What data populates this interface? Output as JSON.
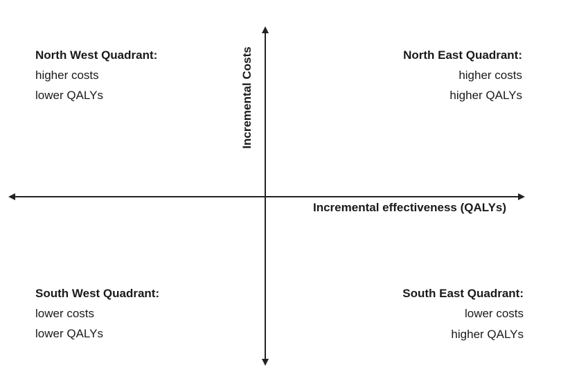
{
  "axes": {
    "x_label": "Incremental effectiveness (QALYs)",
    "y_label": "Incremental Costs"
  },
  "quadrants": {
    "north_west": {
      "title": "North West Quadrant:",
      "line1": "higher costs",
      "line2": "lower QALYs"
    },
    "north_east": {
      "title": "North East Quadrant:",
      "line1": "higher costs",
      "line2": "higher QALYs"
    },
    "south_west": {
      "title": "South West Quadrant:",
      "line1": "lower costs",
      "line2": "lower QALYs"
    },
    "south_east": {
      "title": "South East Quadrant:",
      "line1": "lower costs",
      "line2": "higher QALYs"
    }
  }
}
